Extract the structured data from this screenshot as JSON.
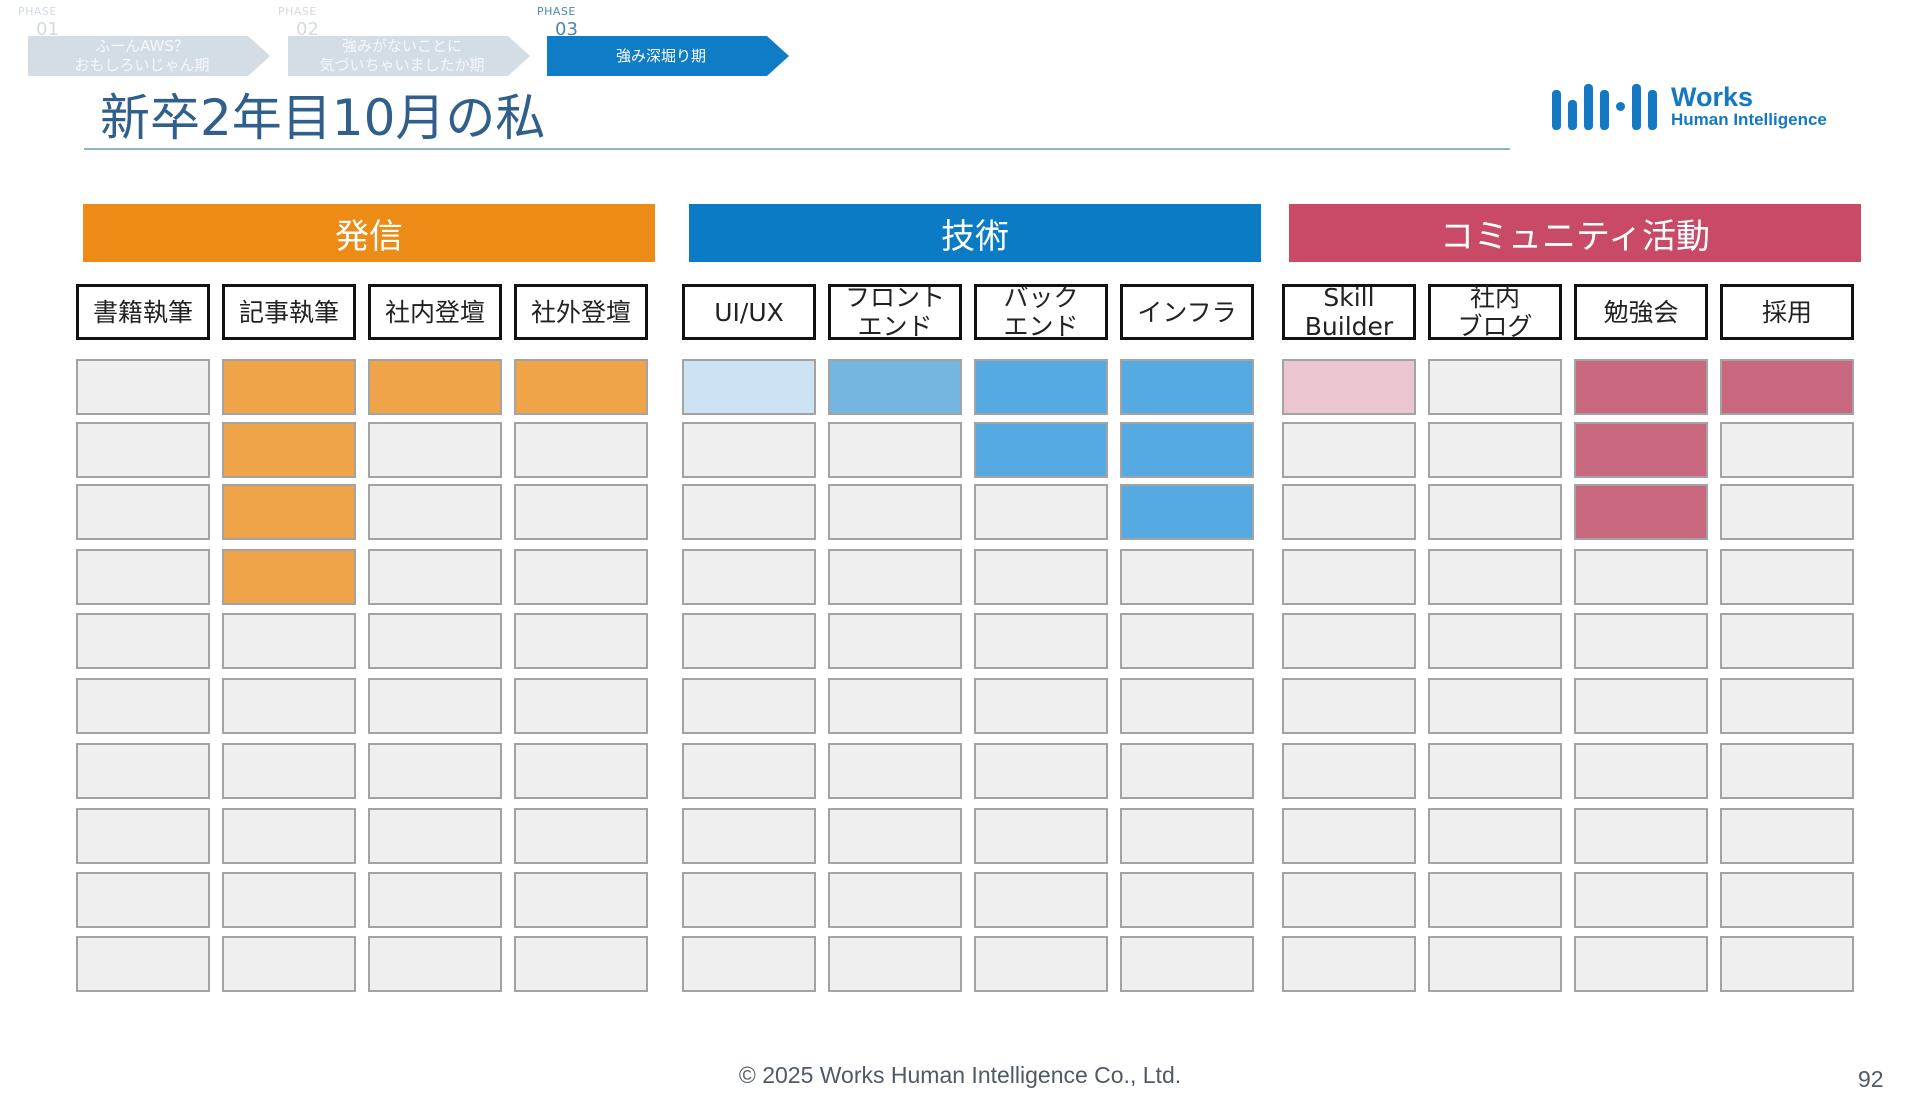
{
  "phases": [
    {
      "label": "PHASE",
      "num": "01",
      "text": "ふーんAWS？\nおもしろいじゃん期",
      "state": "inactive"
    },
    {
      "label": "PHASE",
      "num": "02",
      "text": "強みがないことに\n気づいちゃいましたか期",
      "state": "inactive"
    },
    {
      "label": "PHASE",
      "num": "03",
      "text": "強み深堀り期",
      "state": "active"
    }
  ],
  "page_title": "新卒2年目10月の私",
  "logo": {
    "line1": "Works",
    "line2": "Human Intelligence",
    "icon": "works-hi-logo-icon"
  },
  "groups": [
    {
      "title": "発信",
      "color": "#ed8b17",
      "columns": [
        {
          "label": "書籍執筆",
          "filled": 0
        },
        {
          "label": "記事執筆",
          "filled": 4
        },
        {
          "label": "社内登壇",
          "filled": 1
        },
        {
          "label": "社外登壇",
          "filled": 1
        }
      ],
      "fills": [
        "#efa44a",
        "#efa44a",
        "#efa44a",
        "#efa44a"
      ]
    },
    {
      "title": "技術",
      "color": "#0b7bc6",
      "columns": [
        {
          "label": "UI/UX",
          "filled": 1
        },
        {
          "label": "フロント\nエンド",
          "filled": 1
        },
        {
          "label": "バック\nエンド",
          "filled": 2
        },
        {
          "label": "インフラ",
          "filled": 3
        }
      ],
      "fills": [
        "#cbe3f3",
        "#74b6e0",
        "#55aae1",
        "#55aae1"
      ]
    },
    {
      "title": "コミュニティ活動",
      "color": "#c84a66",
      "columns": [
        {
          "label": "Skill\nBuilder",
          "filled": 1
        },
        {
          "label": "社内\nブログ",
          "filled": 0
        },
        {
          "label": "勉強会",
          "filled": 3
        },
        {
          "label": "採用",
          "filled": 1
        }
      ],
      "fills": [
        "#ebc6d1",
        "#efefef",
        "#c8677d",
        "#c8677d"
      ]
    }
  ],
  "rows_total": 10,
  "footer": "© 2025 Works Human Intelligence Co., Ltd.",
  "page_number": "92"
}
